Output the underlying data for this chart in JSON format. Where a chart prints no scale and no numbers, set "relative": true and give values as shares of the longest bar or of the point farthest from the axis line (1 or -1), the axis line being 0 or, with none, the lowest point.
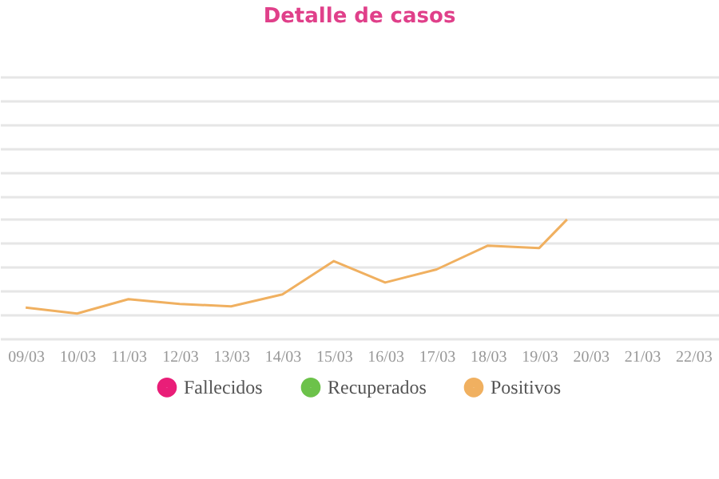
{
  "chart_data": {
    "type": "line",
    "title": "Detalle de casos",
    "relative": true,
    "x": [
      "--03-09",
      "--03-10",
      "--03-11",
      "--03-12",
      "--03-13",
      "--03-14",
      "--03-15",
      "--03-16",
      "--03-17",
      "--03-18",
      "--03-19",
      "--03-19T13:00"
    ],
    "xlim": [
      "--03-08T12:00",
      "--03-22T12:00"
    ],
    "xticks": [
      {
        "value": "--03-09",
        "label": "09/03"
      },
      {
        "value": "--03-10",
        "label": "10/03"
      },
      {
        "value": "--03-11",
        "label": "11/03"
      },
      {
        "value": "--03-12",
        "label": "12/03"
      },
      {
        "value": "--03-13",
        "label": "13/03"
      },
      {
        "value": "--03-14",
        "label": "14/03"
      },
      {
        "value": "--03-15",
        "label": "15/03"
      },
      {
        "value": "--03-16",
        "label": "16/03"
      },
      {
        "value": "--03-17",
        "label": "17/03"
      },
      {
        "value": "--03-18",
        "label": "18/03"
      },
      {
        "value": "--03-19",
        "label": "19/03"
      },
      {
        "value": "--03-20",
        "label": "20/03"
      },
      {
        "value": "--03-21",
        "label": "21/03"
      },
      {
        "value": "--03-22",
        "label": "22/03"
      }
    ],
    "series": [
      {
        "name": "Fallecidos",
        "color": "#e91e78",
        "values": [
          null,
          null,
          null,
          null,
          null,
          null,
          null,
          null,
          null,
          null,
          null,
          null
        ]
      },
      {
        "name": "Recuperados",
        "color": "#6cc24a",
        "values": [
          null,
          null,
          null,
          null,
          null,
          null,
          null,
          null,
          null,
          null,
          null,
          null
        ]
      },
      {
        "name": "Positivos",
        "color": "#f0b060",
        "values": [
          0.26,
          0.21,
          0.33,
          0.29,
          0.27,
          0.37,
          0.65,
          0.47,
          0.58,
          0.78,
          0.76,
          1
        ]
      }
    ],
    "grid": "y",
    "legend": "bottom",
    "marker": "none",
    "line_style": "solid"
  }
}
